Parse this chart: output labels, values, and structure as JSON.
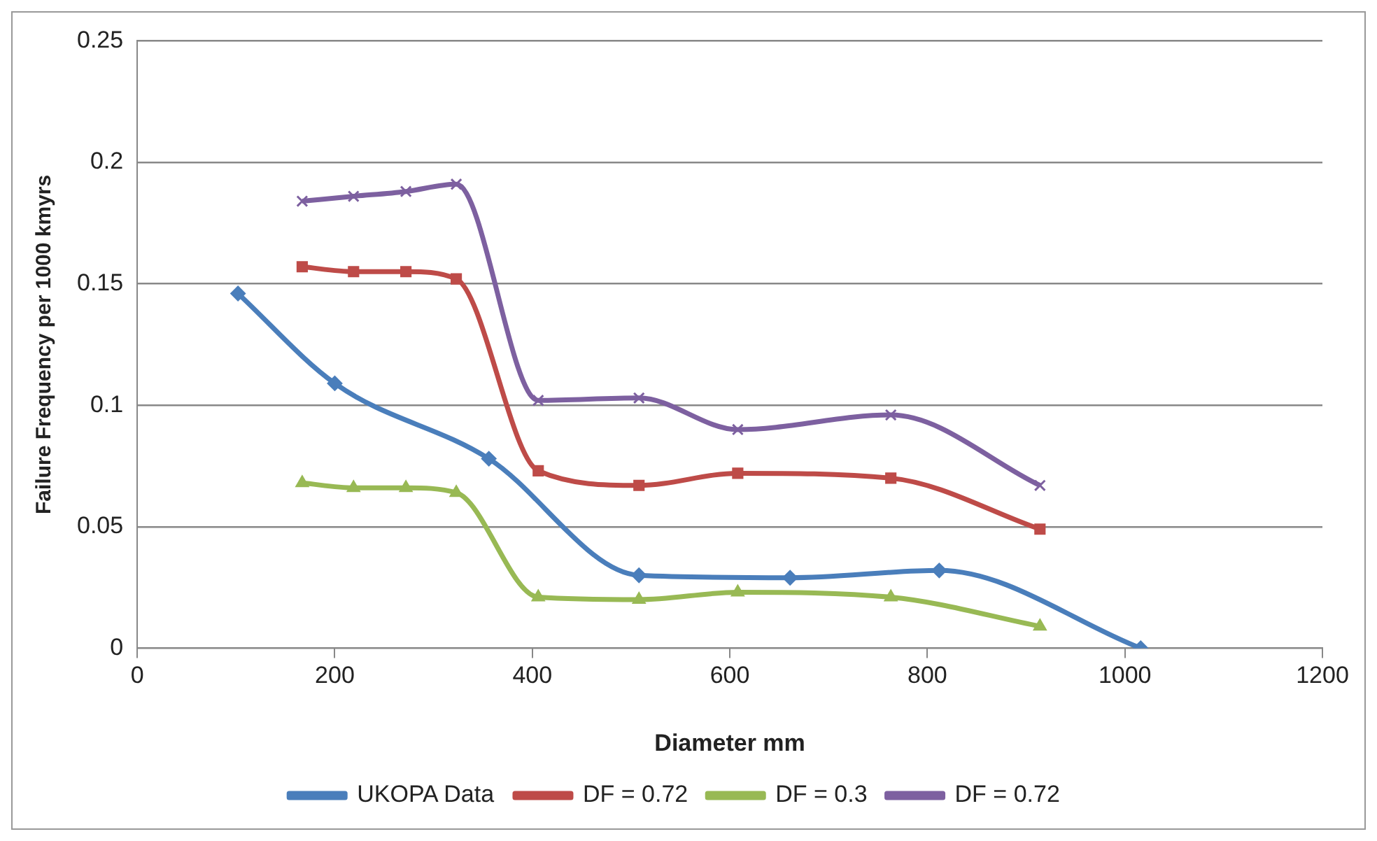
{
  "chart_data": {
    "type": "line",
    "xlabel": "Diameter mm",
    "ylabel": "Failure Frequency per 1000 kmyrs",
    "xlim": [
      0,
      1200
    ],
    "xticks": [
      0,
      200,
      400,
      600,
      800,
      1000,
      1200
    ],
    "ylim": [
      0,
      0.25
    ],
    "yticks": [
      0,
      0.05,
      0.1,
      0.15,
      0.2,
      0.25
    ],
    "grid": "y",
    "legend": "bottom",
    "line_style": "solid",
    "series": [
      {
        "name": "UKOPA Data",
        "color": "#4a7ebb",
        "marker": "diamond",
        "x": [
          102,
          200,
          356,
          508,
          661,
          812,
          1016
        ],
        "values": [
          0.146,
          0.109,
          0.078,
          0.03,
          0.029,
          0.032,
          0
        ]
      },
      {
        "name": "DF = 0.72",
        "color": "#be4b48",
        "marker": "square",
        "x": [
          167,
          219,
          272,
          323,
          406,
          508,
          608,
          763,
          914
        ],
        "values": [
          0.157,
          0.155,
          0.155,
          0.152,
          0.073,
          0.067,
          0.072,
          0.07,
          0.049
        ]
      },
      {
        "name": "DF = 0.3",
        "color": "#98b954",
        "marker": "triangle",
        "x": [
          167,
          219,
          272,
          323,
          406,
          508,
          608,
          763,
          914
        ],
        "values": [
          0.068,
          0.066,
          0.066,
          0.064,
          0.021,
          0.02,
          0.023,
          0.021,
          0.009
        ]
      },
      {
        "name": "DF = 0.72",
        "color": "#7d60a0",
        "marker": "cross",
        "x": [
          167,
          219,
          272,
          323,
          406,
          508,
          608,
          763,
          914
        ],
        "values": [
          0.184,
          0.186,
          0.188,
          0.191,
          0.102,
          0.103,
          0.09,
          0.096,
          0.067
        ]
      }
    ]
  }
}
